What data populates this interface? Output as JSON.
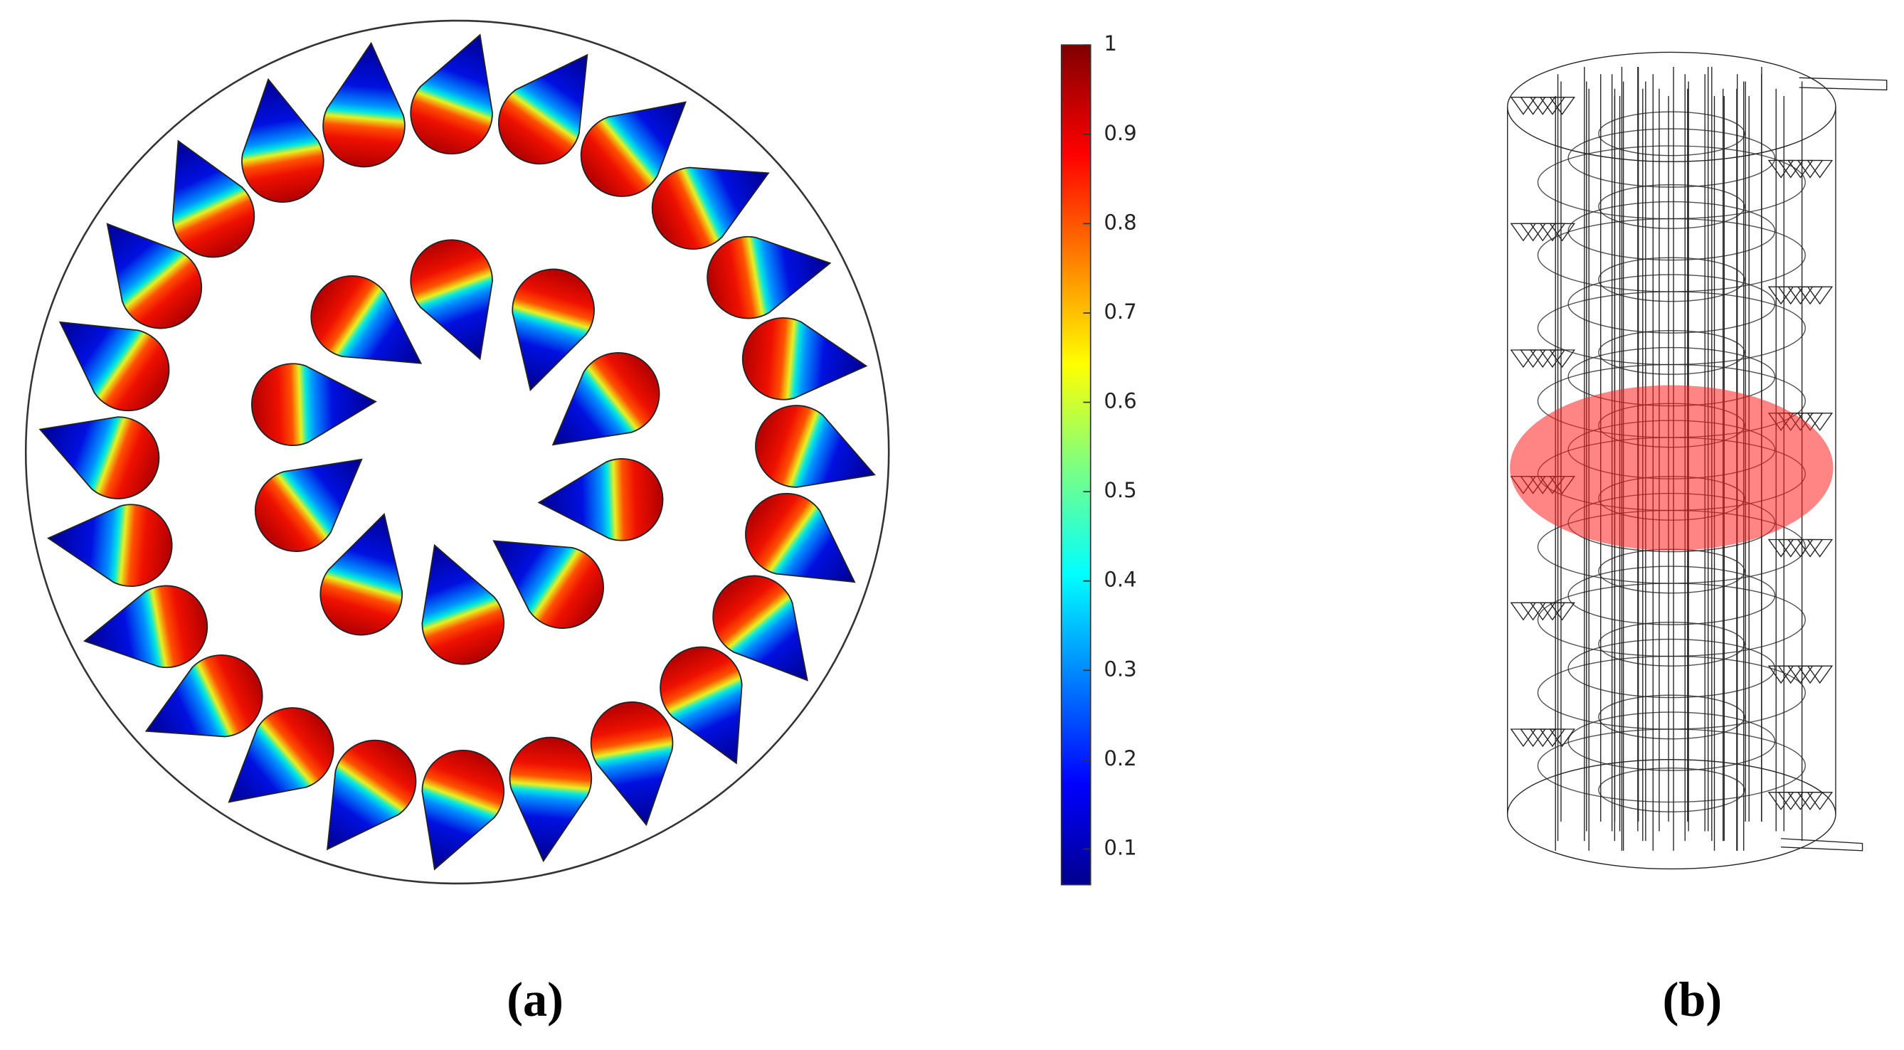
{
  "figure": {
    "panels": [
      {
        "label": "(a)"
      },
      {
        "label": "(b)"
      }
    ],
    "colorbar": {
      "ylim": [
        0.06,
        1
      ],
      "yticks": [
        1,
        0.9,
        0.8,
        0.7,
        0.6,
        0.5,
        0.4,
        0.3,
        0.2,
        0.1
      ]
    }
  }
}
